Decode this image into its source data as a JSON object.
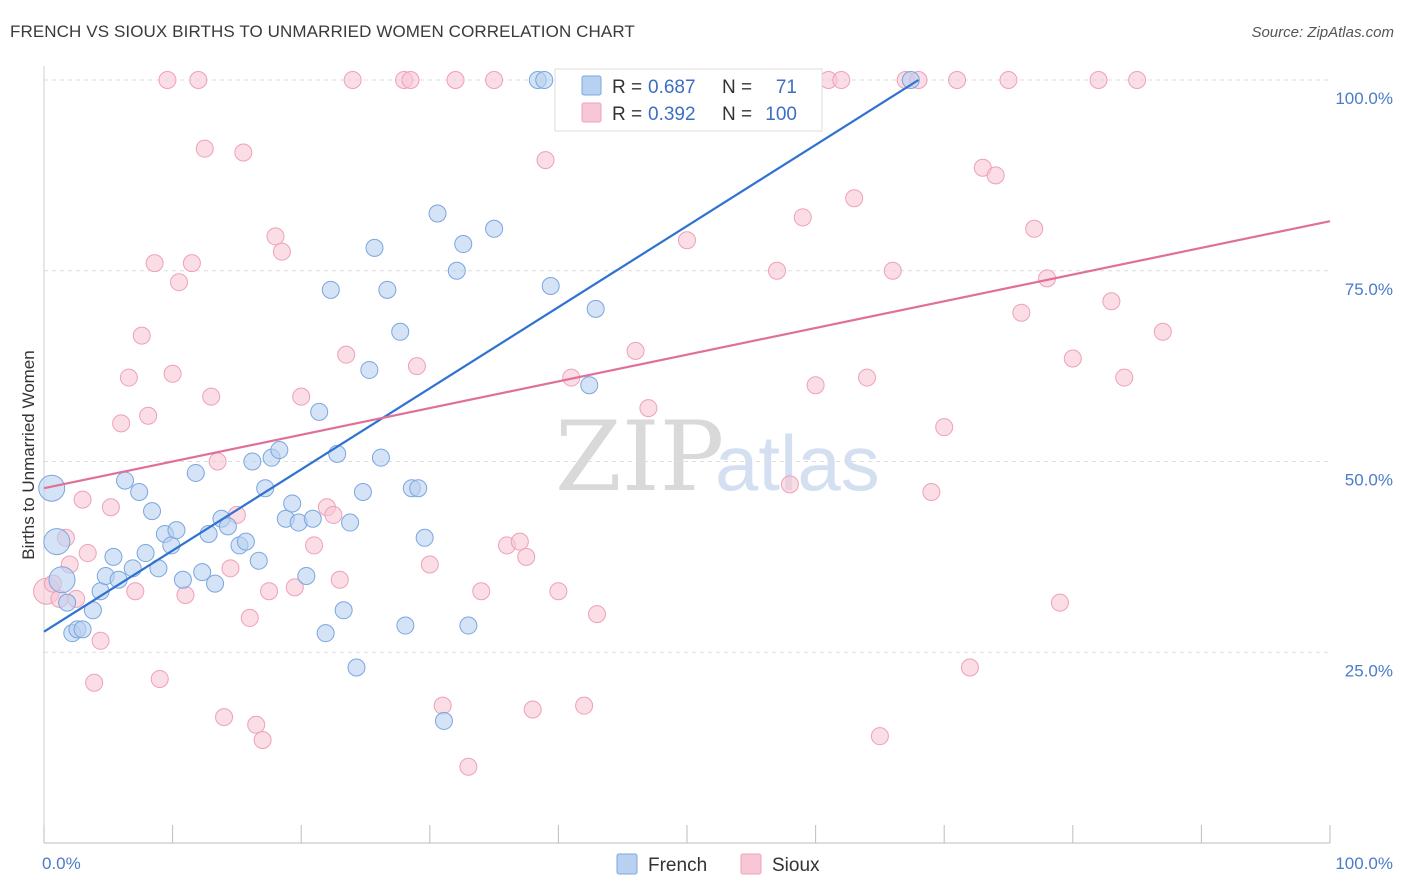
{
  "title": "FRENCH VS SIOUX BIRTHS TO UNMARRIED WOMEN CORRELATION CHART",
  "source": "Source: ZipAtlas.com",
  "watermark": {
    "zip": "ZIP",
    "atlas": "atlas"
  },
  "colors": {
    "french_fill": "#b9d1f0",
    "french_stroke": "#7aa6e0",
    "french_line": "#2f72d0",
    "sioux_fill": "#f8c7d6",
    "sioux_stroke": "#efa0b9",
    "sioux_line": "#e0709a",
    "grid": "#dedede",
    "axis_label": "#4a7cc7"
  },
  "legend_top": {
    "rows": [
      {
        "r_label": "R =",
        "r_value": "0.687",
        "n_label": "N =",
        "n_value": "71"
      },
      {
        "r_label": "R =",
        "r_value": "0.392",
        "n_label": "N =",
        "n_value": "100"
      }
    ]
  },
  "legend_bottom": [
    "French",
    "Sioux"
  ],
  "chart_data": {
    "type": "scatter",
    "title": "FRENCH VS SIOUX BIRTHS TO UNMARRIED WOMEN CORRELATION CHART",
    "xlabel": "",
    "ylabel": "Births to Unmarried Women",
    "xlim": [
      0,
      100
    ],
    "ylim": [
      0,
      100
    ],
    "x_tick_labels": [
      "0.0%",
      "100.0%"
    ],
    "y_tick_labels": [
      "25.0%",
      "50.0%",
      "75.0%",
      "100.0%"
    ],
    "y_ticks": [
      25,
      50,
      75,
      100
    ],
    "grid": true,
    "legend_position": "top-center",
    "series": [
      {
        "name": "French",
        "r": 0.687,
        "n": 71,
        "trend": {
          "x0": 0,
          "y0": 27.7,
          "x1": 68.0,
          "y1": 100
        },
        "points": [
          [
            0.6,
            46.5
          ],
          [
            1.0,
            39.5
          ],
          [
            1.4,
            34.5
          ],
          [
            1.8,
            31.5
          ],
          [
            2.2,
            27.5
          ],
          [
            2.6,
            28.0
          ],
          [
            3.0,
            28.0
          ],
          [
            3.8,
            30.5
          ],
          [
            4.4,
            33.0
          ],
          [
            4.8,
            35.0
          ],
          [
            5.4,
            37.5
          ],
          [
            5.8,
            34.5
          ],
          [
            6.3,
            47.5
          ],
          [
            6.9,
            36.0
          ],
          [
            7.4,
            46.0
          ],
          [
            7.9,
            38.0
          ],
          [
            8.4,
            43.5
          ],
          [
            8.9,
            36.0
          ],
          [
            9.4,
            40.5
          ],
          [
            9.9,
            39.0
          ],
          [
            10.3,
            41.0
          ],
          [
            10.8,
            34.5
          ],
          [
            11.8,
            48.5
          ],
          [
            12.3,
            35.5
          ],
          [
            12.8,
            40.5
          ],
          [
            13.3,
            34.0
          ],
          [
            13.8,
            42.5
          ],
          [
            14.3,
            41.5
          ],
          [
            15.2,
            39.0
          ],
          [
            15.7,
            39.5
          ],
          [
            16.2,
            50.0
          ],
          [
            16.7,
            37.0
          ],
          [
            17.2,
            46.5
          ],
          [
            17.7,
            50.5
          ],
          [
            18.3,
            51.5
          ],
          [
            18.8,
            42.5
          ],
          [
            19.3,
            44.5
          ],
          [
            19.8,
            42.0
          ],
          [
            20.4,
            35.0
          ],
          [
            20.9,
            42.5
          ],
          [
            21.4,
            56.5
          ],
          [
            21.9,
            27.5
          ],
          [
            22.3,
            72.5
          ],
          [
            22.8,
            51.0
          ],
          [
            23.3,
            30.5
          ],
          [
            23.8,
            42.0
          ],
          [
            24.3,
            23.0
          ],
          [
            24.8,
            46.0
          ],
          [
            25.3,
            62.0
          ],
          [
            25.7,
            78.0
          ],
          [
            26.2,
            50.5
          ],
          [
            26.7,
            72.5
          ],
          [
            27.7,
            67.0
          ],
          [
            28.1,
            28.5
          ],
          [
            28.6,
            46.5
          ],
          [
            29.1,
            46.5
          ],
          [
            29.6,
            40.0
          ],
          [
            30.6,
            82.5
          ],
          [
            31.1,
            16.0
          ],
          [
            32.1,
            75.0
          ],
          [
            32.6,
            78.5
          ],
          [
            33.0,
            28.5
          ],
          [
            35.0,
            80.5
          ],
          [
            38.4,
            100
          ],
          [
            38.9,
            100
          ],
          [
            39.4,
            73.0
          ],
          [
            40.4,
            100
          ],
          [
            41.9,
            100
          ],
          [
            42.9,
            70.0
          ],
          [
            42.4,
            60.0
          ],
          [
            67.4,
            100
          ]
        ]
      },
      {
        "name": "Sioux",
        "r": 0.392,
        "n": 100,
        "trend": {
          "x0": 0,
          "y0": 46.5,
          "x1": 100,
          "y1": 81.5
        },
        "points": [
          [
            0.2,
            33.0
          ],
          [
            0.7,
            34.0
          ],
          [
            1.2,
            32.0
          ],
          [
            1.7,
            40.0
          ],
          [
            2.0,
            36.5
          ],
          [
            2.5,
            32.0
          ],
          [
            3.0,
            45.0
          ],
          [
            3.4,
            38.0
          ],
          [
            3.9,
            21.0
          ],
          [
            4.4,
            26.5
          ],
          [
            5.2,
            44.0
          ],
          [
            6.0,
            55.0
          ],
          [
            6.6,
            61.0
          ],
          [
            7.1,
            33.0
          ],
          [
            7.6,
            66.5
          ],
          [
            8.1,
            56.0
          ],
          [
            8.6,
            76.0
          ],
          [
            9.0,
            21.5
          ],
          [
            9.6,
            100
          ],
          [
            10.0,
            61.5
          ],
          [
            10.5,
            73.5
          ],
          [
            11.0,
            32.5
          ],
          [
            11.5,
            76.0
          ],
          [
            12.0,
            100
          ],
          [
            12.5,
            91.0
          ],
          [
            13.0,
            58.5
          ],
          [
            13.5,
            50.0
          ],
          [
            14.0,
            16.5
          ],
          [
            14.5,
            36.0
          ],
          [
            15.0,
            43.0
          ],
          [
            15.5,
            90.5
          ],
          [
            16.0,
            29.5
          ],
          [
            16.5,
            15.5
          ],
          [
            17.0,
            13.5
          ],
          [
            17.5,
            33.0
          ],
          [
            18.0,
            79.5
          ],
          [
            18.5,
            77.5
          ],
          [
            19.5,
            33.5
          ],
          [
            20.0,
            58.5
          ],
          [
            21.0,
            39.0
          ],
          [
            22.0,
            44.0
          ],
          [
            22.5,
            43.0
          ],
          [
            23.0,
            34.5
          ],
          [
            23.5,
            64.0
          ],
          [
            24.0,
            100
          ],
          [
            28.0,
            100
          ],
          [
            28.5,
            100
          ],
          [
            29.0,
            62.5
          ],
          [
            30.0,
            36.5
          ],
          [
            31.0,
            18.0
          ],
          [
            32.0,
            100
          ],
          [
            33.0,
            10.0
          ],
          [
            34.0,
            33.0
          ],
          [
            35.0,
            100
          ],
          [
            36.0,
            39.0
          ],
          [
            37.0,
            39.5
          ],
          [
            37.5,
            37.5
          ],
          [
            38.0,
            17.5
          ],
          [
            39.0,
            89.5
          ],
          [
            40.0,
            33.0
          ],
          [
            41.0,
            61.0
          ],
          [
            42.0,
            18.0
          ],
          [
            43.0,
            30.0
          ],
          [
            44.0,
            100
          ],
          [
            46.0,
            64.5
          ],
          [
            47.0,
            57.0
          ],
          [
            48.0,
            100
          ],
          [
            50.0,
            79.0
          ],
          [
            52.0,
            100
          ],
          [
            54.0,
            100
          ],
          [
            55.0,
            100
          ],
          [
            57.0,
            75.0
          ],
          [
            58.0,
            47.0
          ],
          [
            59.0,
            82.0
          ],
          [
            60.0,
            60.0
          ],
          [
            61.0,
            100
          ],
          [
            62.0,
            100
          ],
          [
            63.0,
            84.5
          ],
          [
            64.0,
            61.0
          ],
          [
            65.0,
            14.0
          ],
          [
            66.0,
            75.0
          ],
          [
            67.0,
            100
          ],
          [
            68.0,
            100
          ],
          [
            69.0,
            46.0
          ],
          [
            70.0,
            54.5
          ],
          [
            71.0,
            100
          ],
          [
            72.0,
            23.0
          ],
          [
            73.0,
            88.5
          ],
          [
            74.0,
            87.5
          ],
          [
            75.0,
            100
          ],
          [
            76.0,
            69.5
          ],
          [
            77.0,
            80.5
          ],
          [
            78.0,
            74.0
          ],
          [
            79.0,
            31.5
          ],
          [
            80.0,
            63.5
          ],
          [
            82.0,
            100
          ],
          [
            83.0,
            71.0
          ],
          [
            84.0,
            61.0
          ],
          [
            85.0,
            100
          ],
          [
            87.0,
            67.0
          ]
        ]
      }
    ]
  }
}
